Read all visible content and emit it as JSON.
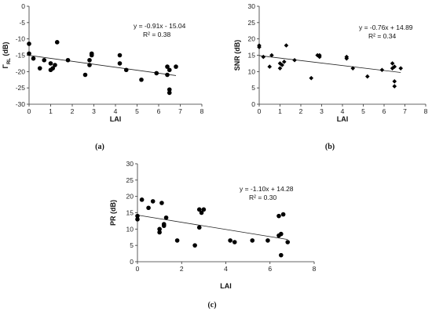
{
  "chart_data": [
    {
      "type": "scatter",
      "panel_label": "(a)",
      "xlabel": "LAI",
      "ylabel": "Γ",
      "ylabel_sub": "RL",
      "ylabel_unit": " (dB)",
      "xlim": [
        0,
        8
      ],
      "ylim": [
        -30,
        0
      ],
      "xticks": [
        0,
        1,
        2,
        3,
        4,
        5,
        6,
        7,
        8
      ],
      "yticks": [
        -30,
        -25,
        -20,
        -15,
        -10,
        -5,
        0
      ],
      "marker": "circle",
      "equation": "y = -0.91x - 15.04",
      "r2": "R² = 0.38",
      "trend": {
        "slope": -0.91,
        "intercept": -15.04,
        "x_range": [
          0,
          6.8
        ]
      },
      "points": [
        {
          "x": 0.0,
          "y": -11.5
        },
        {
          "x": 0.0,
          "y": -14.5
        },
        {
          "x": 0.2,
          "y": -16.0
        },
        {
          "x": 0.5,
          "y": -19.0
        },
        {
          "x": 0.7,
          "y": -16.5
        },
        {
          "x": 1.0,
          "y": -17.5
        },
        {
          "x": 1.0,
          "y": -19.5
        },
        {
          "x": 1.1,
          "y": -19.0
        },
        {
          "x": 1.2,
          "y": -18.0
        },
        {
          "x": 1.3,
          "y": -11.0
        },
        {
          "x": 1.8,
          "y": -16.5
        },
        {
          "x": 2.6,
          "y": -21.0
        },
        {
          "x": 2.8,
          "y": -16.5
        },
        {
          "x": 2.9,
          "y": -14.5
        },
        {
          "x": 2.9,
          "y": -15.0
        },
        {
          "x": 2.8,
          "y": -18.0
        },
        {
          "x": 4.2,
          "y": -15.0
        },
        {
          "x": 4.2,
          "y": -17.5
        },
        {
          "x": 4.5,
          "y": -19.5
        },
        {
          "x": 5.2,
          "y": -22.5
        },
        {
          "x": 5.9,
          "y": -20.5
        },
        {
          "x": 6.4,
          "y": -18.5
        },
        {
          "x": 6.5,
          "y": -19.5
        },
        {
          "x": 6.4,
          "y": -21.0
        },
        {
          "x": 6.5,
          "y": -25.5
        },
        {
          "x": 6.5,
          "y": -26.5
        },
        {
          "x": 6.8,
          "y": -18.5
        }
      ]
    },
    {
      "type": "scatter",
      "panel_label": "(b)",
      "xlabel": "LAI",
      "ylabel": "SNR (dB)",
      "ylabel_sub": "",
      "ylabel_unit": "",
      "xlim": [
        0,
        8
      ],
      "ylim": [
        0,
        30
      ],
      "xticks": [
        0,
        1,
        2,
        3,
        4,
        5,
        6,
        7,
        8
      ],
      "yticks": [
        0,
        5,
        10,
        15,
        20,
        25,
        30
      ],
      "marker": "diamond",
      "equation": "y = -0.76x + 14.89",
      "r2": "R² = 0.34",
      "trend": {
        "slope": -0.76,
        "intercept": 14.89,
        "x_range": [
          0,
          6.8
        ]
      },
      "points": [
        {
          "x": 0.0,
          "y": 18.0
        },
        {
          "x": 0.0,
          "y": 17.5
        },
        {
          "x": 0.2,
          "y": 14.5
        },
        {
          "x": 0.5,
          "y": 11.5
        },
        {
          "x": 0.6,
          "y": 15.0
        },
        {
          "x": 1.0,
          "y": 12.5
        },
        {
          "x": 1.0,
          "y": 11.0
        },
        {
          "x": 1.1,
          "y": 12.0
        },
        {
          "x": 1.2,
          "y": 13.0
        },
        {
          "x": 1.3,
          "y": 18.0
        },
        {
          "x": 1.7,
          "y": 13.5
        },
        {
          "x": 2.5,
          "y": 8.0
        },
        {
          "x": 2.8,
          "y": 15.0
        },
        {
          "x": 2.9,
          "y": 14.5
        },
        {
          "x": 2.9,
          "y": 15.0
        },
        {
          "x": 4.2,
          "y": 14.5
        },
        {
          "x": 4.2,
          "y": 14.0
        },
        {
          "x": 4.5,
          "y": 11.0
        },
        {
          "x": 5.2,
          "y": 8.5
        },
        {
          "x": 5.9,
          "y": 10.5
        },
        {
          "x": 6.4,
          "y": 12.5
        },
        {
          "x": 6.5,
          "y": 11.5
        },
        {
          "x": 6.4,
          "y": 11.0
        },
        {
          "x": 6.5,
          "y": 7.0
        },
        {
          "x": 6.5,
          "y": 5.5
        },
        {
          "x": 6.8,
          "y": 11.0
        }
      ]
    },
    {
      "type": "scatter",
      "panel_label": "(c)",
      "xlabel": "LAI",
      "ylabel": "PR (dB)",
      "ylabel_sub": "",
      "ylabel_unit": "",
      "xlim": [
        0,
        8
      ],
      "ylim": [
        0,
        30
      ],
      "xticks": [
        0,
        2,
        4,
        6,
        8
      ],
      "yticks": [
        0,
        5,
        10,
        15,
        20,
        25,
        30
      ],
      "marker": "circle",
      "equation": "y = -1.10x + 14.28",
      "r2": "R² = 0.30",
      "trend": {
        "slope": -1.1,
        "intercept": 14.28,
        "x_range": [
          0,
          6.8
        ]
      },
      "points": [
        {
          "x": 0.0,
          "y": 14.0
        },
        {
          "x": 0.0,
          "y": 13.0
        },
        {
          "x": 0.2,
          "y": 19.0
        },
        {
          "x": 0.5,
          "y": 16.5
        },
        {
          "x": 0.7,
          "y": 18.5
        },
        {
          "x": 1.0,
          "y": 10.0
        },
        {
          "x": 1.0,
          "y": 9.0
        },
        {
          "x": 1.1,
          "y": 18.0
        },
        {
          "x": 1.2,
          "y": 11.5
        },
        {
          "x": 1.2,
          "y": 11.0
        },
        {
          "x": 1.3,
          "y": 13.5
        },
        {
          "x": 1.8,
          "y": 6.5
        },
        {
          "x": 2.6,
          "y": 5.0
        },
        {
          "x": 2.8,
          "y": 10.5
        },
        {
          "x": 2.8,
          "y": 16.0
        },
        {
          "x": 2.9,
          "y": 15.0
        },
        {
          "x": 3.0,
          "y": 16.0
        },
        {
          "x": 4.2,
          "y": 6.5
        },
        {
          "x": 4.4,
          "y": 6.0
        },
        {
          "x": 5.2,
          "y": 6.5
        },
        {
          "x": 5.9,
          "y": 6.5
        },
        {
          "x": 6.4,
          "y": 14.0
        },
        {
          "x": 6.4,
          "y": 8.0
        },
        {
          "x": 6.5,
          "y": 8.5
        },
        {
          "x": 6.5,
          "y": 2.0
        },
        {
          "x": 6.8,
          "y": 6.0
        },
        {
          "x": 6.6,
          "y": 14.5
        }
      ]
    }
  ]
}
